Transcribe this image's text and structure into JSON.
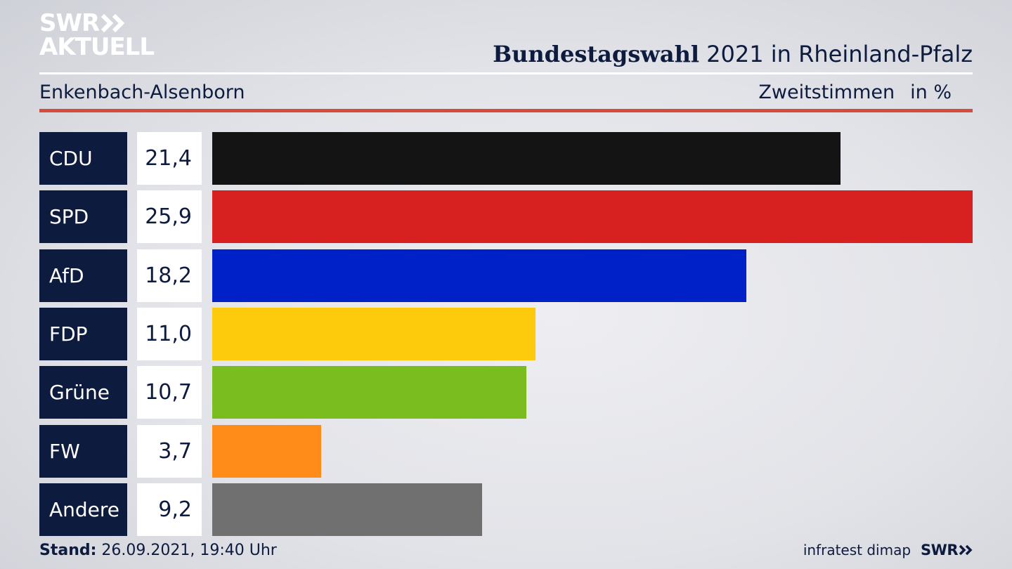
{
  "logo": {
    "line1": "SWR",
    "line2": "AKTUELL"
  },
  "header": {
    "title_bold": "Bundestagswahl",
    "title_rest": "2021 in Rheinland-Pfalz"
  },
  "subheader": {
    "location": "Enkenbach-Alsenborn",
    "metric": "Zweitstimmen",
    "unit": "in %"
  },
  "chart_data": {
    "type": "bar",
    "orientation": "horizontal",
    "categories": [
      "CDU",
      "SPD",
      "AfD",
      "FDP",
      "Grüne",
      "FW",
      "Andere"
    ],
    "values": [
      21.4,
      25.9,
      18.2,
      11.0,
      10.7,
      3.7,
      9.2
    ],
    "value_labels": [
      "21,4",
      "25,9",
      "18,2",
      "11,0",
      "10,7",
      "3,7",
      "9,2"
    ],
    "colors": [
      "#141414",
      "#d72020",
      "#0021c8",
      "#fdcb0b",
      "#79be1e",
      "#ff8c19",
      "#707070"
    ],
    "xlim": [
      0,
      25.9
    ],
    "title": "Bundestagswahl 2021 in Rheinland-Pfalz",
    "grid": false,
    "legend": "none"
  },
  "footer": {
    "stand_label": "Stand:",
    "stand_value": "26.09.2021, 19:40 Uhr",
    "source": "infratest dimap",
    "brand": "SWR"
  }
}
